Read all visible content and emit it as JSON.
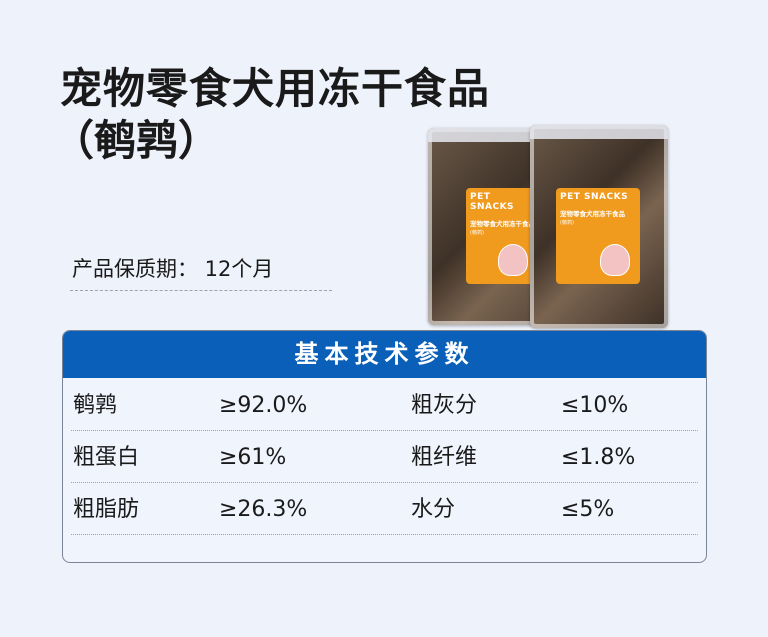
{
  "title": "宠物零食犬用冻干食品",
  "subtitle": "（鹌鹑）",
  "shelf_life": "产品保质期：  12个月",
  "product_image": {
    "label_brand": "PET SNACKS",
    "label_name": "宠物零食犬用冻干食品",
    "label_variant": "(鹌鹑)",
    "label_color": "#f09a1e"
  },
  "spec_table": {
    "header": "基本技术参数",
    "header_color": "#0a60b8",
    "rows": [
      {
        "name1": "鹌鹑",
        "value1": "≥92.0%",
        "name2": "粗灰分",
        "value2": "≤10%"
      },
      {
        "name1": "粗蛋白",
        "value1": "≥61%",
        "name2": "粗纤维",
        "value2": "≤1.8%"
      },
      {
        "name1": "粗脂肪",
        "value1": "≥26.3%",
        "name2": "水分",
        "value2": "≤5%"
      }
    ]
  }
}
